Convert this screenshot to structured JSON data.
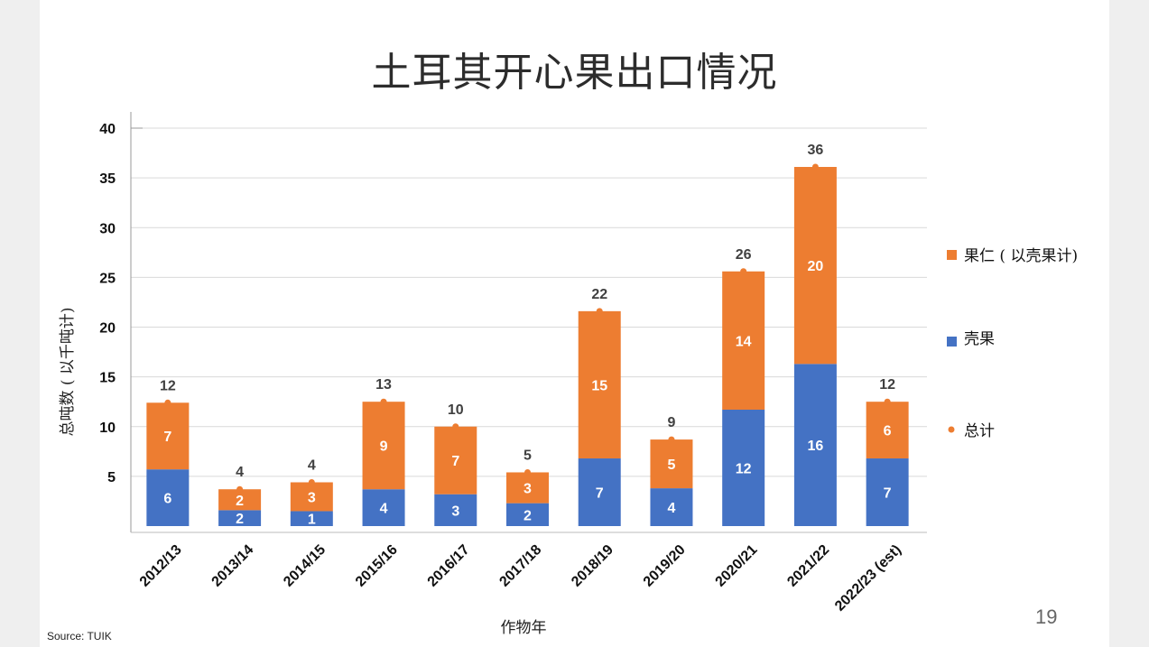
{
  "slide": {
    "title": "土耳其开心果出口情况",
    "source": "Source: TUIK",
    "page_number": "19"
  },
  "chart_data": {
    "type": "bar",
    "stacked": true,
    "categories": [
      "2012/13",
      "2013/14",
      "2014/15",
      "2015/16",
      "2016/17",
      "2017/18",
      "2018/19",
      "2019/20",
      "2020/21",
      "2021/22",
      "2022/23 (est)"
    ],
    "series": [
      {
        "name": "壳果",
        "color": "#4472c4",
        "values": [
          5.7,
          1.6,
          1.5,
          3.7,
          3.2,
          2.3,
          6.8,
          3.8,
          11.7,
          16.3,
          6.8
        ],
        "labels": [
          "6",
          "2",
          "1",
          "4",
          "3",
          "2",
          "7",
          "4",
          "12",
          "16",
          "7"
        ]
      },
      {
        "name": "果仁 ( 以壳果计)",
        "color": "#ed7d31",
        "values": [
          6.7,
          2.1,
          2.9,
          8.8,
          6.8,
          3.1,
          14.8,
          4.9,
          13.9,
          19.8,
          5.7
        ],
        "labels": [
          "7",
          "2",
          "3",
          "9",
          "7",
          "3",
          "15",
          "5",
          "14",
          "20",
          "6"
        ]
      }
    ],
    "totals": {
      "name": "总计",
      "color": "#ed7d31",
      "values": [
        12.4,
        3.7,
        4.4,
        12.5,
        10.0,
        5.4,
        21.6,
        8.7,
        25.6,
        36.1,
        12.5
      ],
      "labels": [
        "12",
        "4",
        "4",
        "13",
        "10",
        "5",
        "22",
        "9",
        "26",
        "36",
        "12"
      ]
    },
    "xlabel": "作物年",
    "ylabel": "总吨数 ( 以千吨计)",
    "ylim": [
      0,
      40
    ],
    "yticks": [
      "5",
      "10",
      "15",
      "20",
      "25",
      "30",
      "35",
      "40"
    ],
    "ytick_values": [
      5,
      10,
      15,
      20,
      25,
      30,
      35,
      40
    ],
    "grid": true,
    "legend_position": "right"
  }
}
